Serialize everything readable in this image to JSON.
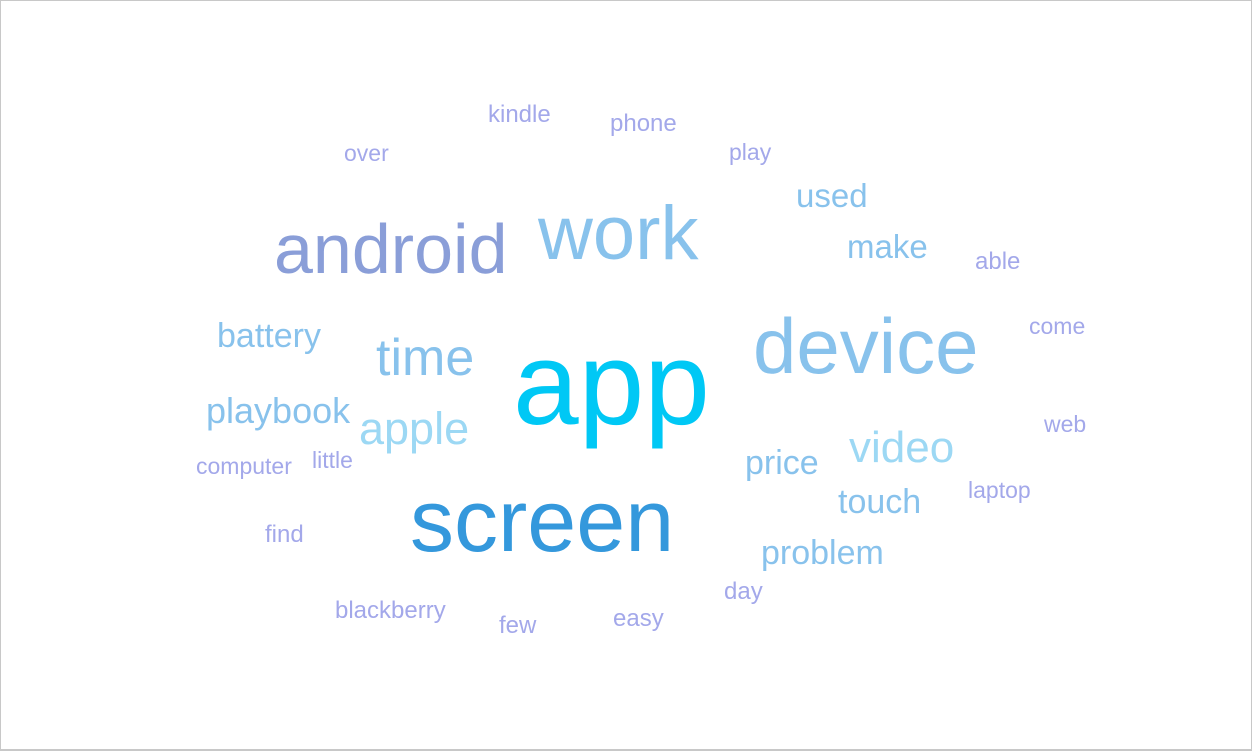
{
  "word_cloud": {
    "words": [
      {
        "key": "app",
        "text": "app",
        "color": "#00c8f5"
      },
      {
        "key": "screen",
        "text": "screen",
        "color": "#3498dc"
      },
      {
        "key": "device",
        "text": "device",
        "color": "#88c2ec"
      },
      {
        "key": "work",
        "text": "work",
        "color": "#88c2ec"
      },
      {
        "key": "android",
        "text": "android",
        "color": "#8a9ed8"
      },
      {
        "key": "time",
        "text": "time",
        "color": "#88c2ec"
      },
      {
        "key": "apple",
        "text": "apple",
        "color": "#9cd8f4"
      },
      {
        "key": "video",
        "text": "video",
        "color": "#9cd8f4"
      },
      {
        "key": "playbook",
        "text": "playbook",
        "color": "#88c2ec"
      },
      {
        "key": "battery",
        "text": "battery",
        "color": "#88c2ec"
      },
      {
        "key": "price",
        "text": "price",
        "color": "#88c2ec"
      },
      {
        "key": "touch",
        "text": "touch",
        "color": "#88c2ec"
      },
      {
        "key": "problem",
        "text": "problem",
        "color": "#88c2ec"
      },
      {
        "key": "used",
        "text": "used",
        "color": "#88c2ec"
      },
      {
        "key": "make",
        "text": "make",
        "color": "#88c2ec"
      },
      {
        "key": "kindle",
        "text": "kindle",
        "color": "#a3a8ea"
      },
      {
        "key": "phone",
        "text": "phone",
        "color": "#a3a8ea"
      },
      {
        "key": "over",
        "text": "over",
        "color": "#a3a8ea"
      },
      {
        "key": "play",
        "text": "play",
        "color": "#a3a8ea"
      },
      {
        "key": "able",
        "text": "able",
        "color": "#a3a8ea"
      },
      {
        "key": "come",
        "text": "come",
        "color": "#a3a8ea"
      },
      {
        "key": "web",
        "text": "web",
        "color": "#a3a8ea"
      },
      {
        "key": "laptop",
        "text": "laptop",
        "color": "#a3a8ea"
      },
      {
        "key": "computer",
        "text": "computer",
        "color": "#a3a8ea"
      },
      {
        "key": "little",
        "text": "little",
        "color": "#a3a8ea"
      },
      {
        "key": "find",
        "text": "find",
        "color": "#a3a8ea"
      },
      {
        "key": "blackberry",
        "text": "blackberry",
        "color": "#a3a8ea"
      },
      {
        "key": "few",
        "text": "few",
        "color": "#a3a8ea"
      },
      {
        "key": "easy",
        "text": "easy",
        "color": "#a3a8ea"
      },
      {
        "key": "day",
        "text": "day",
        "color": "#a3a8ea"
      }
    ]
  }
}
